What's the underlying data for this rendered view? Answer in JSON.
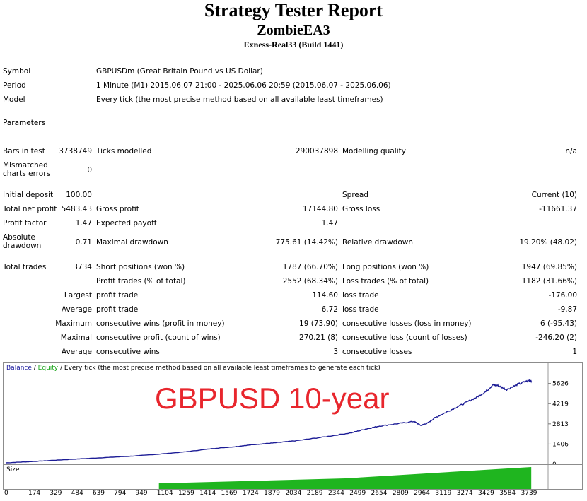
{
  "header": {
    "title": "Strategy Tester Report",
    "ea_name": "ZombieEA3",
    "account": "Exness-Real33 (Build 1441)"
  },
  "info": {
    "symbol_label": "Symbol",
    "symbol_value": "GBPUSDm (Great Britain Pound vs US Dollar)",
    "period_label": "Period",
    "period_value": "1 Minute (M1) 2015.06.07 21:00 - 2025.06.06 20:59 (2015.06.07 - 2025.06.06)",
    "model_label": "Model",
    "model_value": "Every tick (the most precise method based on all available least timeframes)",
    "parameters_label": "Parameters"
  },
  "stats": {
    "bars_label": "Bars in test",
    "bars_value": "3738749",
    "ticks_label": "Ticks modelled",
    "ticks_value": "290037898",
    "quality_label": "Modelling quality",
    "quality_value": "n/a",
    "mismatch_label": "Mismatched charts errors",
    "mismatch_value": "0",
    "deposit_label": "Initial deposit",
    "deposit_value": "100.00",
    "spread_label": "Spread",
    "spread_value": "Current (10)",
    "netprofit_label": "Total net profit",
    "netprofit_value": "5483.43",
    "grossprofit_label": "Gross profit",
    "grossprofit_value": "17144.80",
    "grossloss_label": "Gross loss",
    "grossloss_value": "-11661.37",
    "pf_label": "Profit factor",
    "pf_value": "1.47",
    "payoff_label": "Expected payoff",
    "payoff_value": "1.47",
    "absdd_label": "Absolute drawdown",
    "absdd_value": "0.71",
    "maxdd_label": "Maximal drawdown",
    "maxdd_value": "775.61 (14.42%)",
    "reldd_label": "Relative drawdown",
    "reldd_value": "19.20% (48.02)",
    "trades_label": "Total trades",
    "trades_value": "3734",
    "short_label": "Short positions (won %)",
    "short_value": "1787 (66.70%)",
    "long_label": "Long positions (won %)",
    "long_value": "1947 (69.85%)",
    "ptrades_label": "Profit trades (% of total)",
    "ptrades_value": "2552 (68.34%)",
    "ltrades_label": "Loss trades (% of total)",
    "ltrades_value": "1182 (31.66%)",
    "largest_label": "Largest",
    "largest_profit_label": "profit trade",
    "largest_profit_value": "114.60",
    "largest_loss_label": "loss trade",
    "largest_loss_value": "-176.00",
    "average_label": "Average",
    "average_profit_label": "profit trade",
    "average_profit_value": "6.72",
    "average_loss_label": "loss trade",
    "average_loss_value": "-9.87",
    "maximum_label": "Maximum",
    "max_wins_label": "consecutive wins (profit in money)",
    "max_wins_value": "19 (73.90)",
    "max_losses_label": "consecutive losses (loss in money)",
    "max_losses_value": "6 (-95.43)",
    "maximal_label": "Maximal",
    "maximal_profit_label": "consecutive profit (count of wins)",
    "maximal_profit_value": "270.21 (8)",
    "maximal_loss_label": "consecutive loss (count of losses)",
    "maximal_loss_value": "-246.20 (2)",
    "avg2_label": "Average",
    "avg_wins_label": "consecutive wins",
    "avg_wins_value": "3",
    "avg_losses_label": "consecutive losses",
    "avg_losses_value": "1"
  },
  "chart": {
    "legend_balance": "Balance",
    "legend_sep": " / ",
    "legend_equity": "Equity",
    "legend_rest": " / Every tick (the most precise method based on all available least timeframes to generate each tick)",
    "overlay_text": "GBPUSD 10-year",
    "size_label": "Size"
  },
  "chart_data": {
    "type": "line",
    "x_ticks": [
      "0",
      "174",
      "329",
      "484",
      "639",
      "794",
      "949",
      "1104",
      "1259",
      "1414",
      "1569",
      "1724",
      "1879",
      "2034",
      "2189",
      "2344",
      "2499",
      "2654",
      "2809",
      "2964",
      "3119",
      "3274",
      "3429",
      "3584",
      "3739"
    ],
    "y_ticks": [
      "5626",
      "4219",
      "2813",
      "1406",
      "0"
    ],
    "ylim": [
      0,
      6200
    ],
    "xlim": [
      0,
      3900
    ],
    "series": [
      {
        "name": "Balance",
        "color": "#1c1c96",
        "x": [
          0,
          150,
          300,
          500,
          700,
          900,
          1100,
          1300,
          1500,
          1650,
          1750,
          1850,
          1950,
          2100,
          2300,
          2500,
          2600,
          2700,
          2850,
          2950,
          3000,
          3050,
          3100,
          3200,
          3300,
          3400,
          3470,
          3520,
          3560,
          3620,
          3700,
          3780,
          3800
        ],
        "y": [
          100,
          170,
          250,
          360,
          460,
          560,
          700,
          870,
          1100,
          1220,
          1330,
          1420,
          1500,
          1640,
          1900,
          2200,
          2450,
          2660,
          2850,
          2980,
          2700,
          2870,
          3230,
          3700,
          4170,
          4650,
          5060,
          5520,
          5480,
          5200,
          5560,
          5830,
          5780
        ]
      }
    ],
    "size_start_x": 1104
  }
}
